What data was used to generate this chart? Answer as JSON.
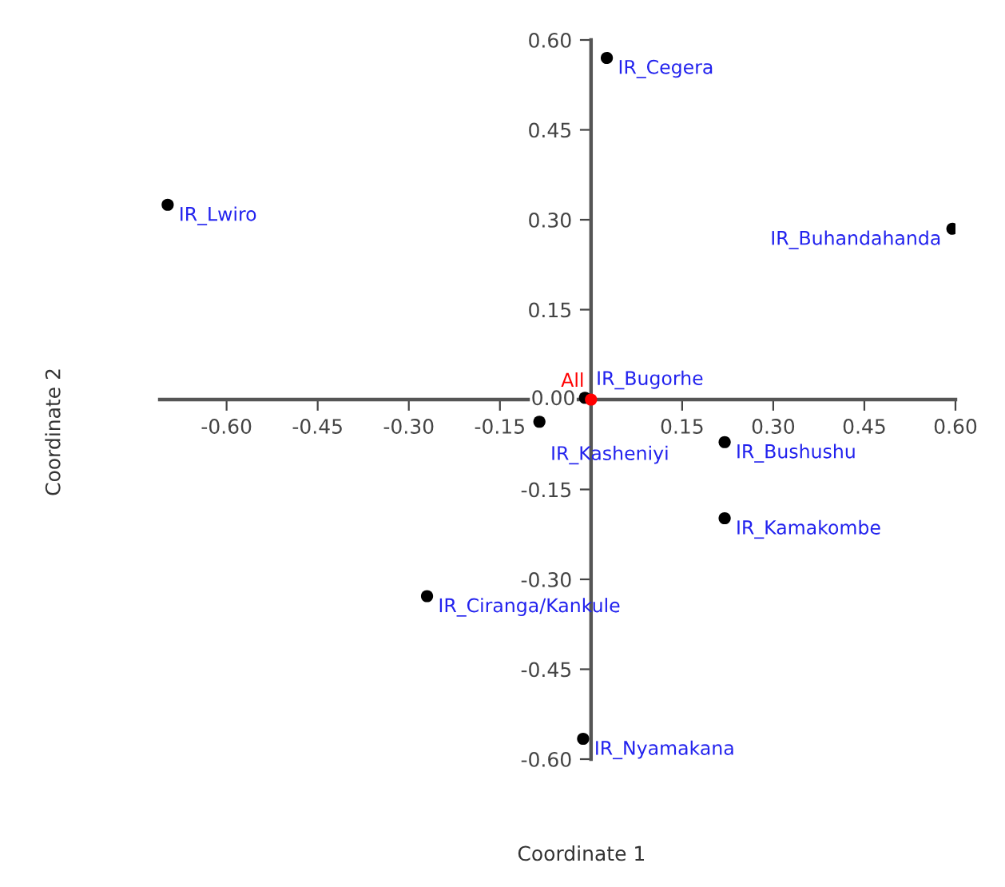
{
  "chart_data": {
    "type": "scatter",
    "xlabel": "Coordinate 1",
    "ylabel": "Coordinate 2",
    "series": [
      {
        "color": "#000000",
        "x": [
          -0.697,
          0.026,
          0.595,
          -0.085,
          -0.01,
          0.22,
          0.22,
          -0.27,
          -0.013
        ],
        "values": [
          0.325,
          0.57,
          0.285,
          -0.037,
          0.003,
          -0.071,
          -0.198,
          -0.328,
          -0.566
        ]
      },
      {
        "name": "All",
        "color": "#ff0000",
        "x": [
          0.0
        ],
        "values": [
          0.0
        ]
      }
    ],
    "annotations": [
      {
        "text": "IR_Lwiro",
        "x": -0.697,
        "y": 0.325
      },
      {
        "text": "IR_Cegera",
        "x": 0.026,
        "y": 0.57
      },
      {
        "text": "IR_Buhandahanda",
        "x": 0.595,
        "y": 0.285
      },
      {
        "text": "IR_Kasheniyi",
        "x": -0.085,
        "y": -0.037
      },
      {
        "text": "IR_Bugorhe",
        "x": -0.01,
        "y": 0.003
      },
      {
        "text": "IR_Bushushu",
        "x": 0.22,
        "y": -0.071
      },
      {
        "text": "IR_Kamakombe",
        "x": 0.22,
        "y": -0.198
      },
      {
        "text": "IR_Ciranga/Kankule",
        "x": -0.27,
        "y": -0.328
      },
      {
        "text": "IR_Nyamakana",
        "x": -0.013,
        "y": -0.566
      }
    ],
    "marker": "circle",
    "grid": false,
    "legend": false,
    "xlim": [
      -0.71,
      0.6
    ],
    "ylim": [
      -0.6,
      0.6
    ],
    "xticks": [
      {
        "value": -0.6,
        "label": "-0.60"
      },
      {
        "value": -0.45,
        "label": "-0.45"
      },
      {
        "value": -0.3,
        "label": "-0.30"
      },
      {
        "value": -0.15,
        "label": "-0.15"
      },
      {
        "value": 0.15,
        "label": "0.15"
      },
      {
        "value": 0.3,
        "label": "0.30"
      },
      {
        "value": 0.45,
        "label": "0.45"
      },
      {
        "value": 0.6,
        "label": "0.60"
      }
    ],
    "yticks": [
      {
        "value": -0.6,
        "label": "-0.60"
      },
      {
        "value": -0.45,
        "label": "-0.45"
      },
      {
        "value": -0.3,
        "label": "-0.30"
      },
      {
        "value": -0.15,
        "label": "-0.15"
      },
      {
        "value": 0,
        "label": "0.00"
      },
      {
        "value": 0.15,
        "label": "0.15"
      },
      {
        "value": 0.3,
        "label": "0.30"
      },
      {
        "value": 0.45,
        "label": "0.45"
      },
      {
        "value": 0.6,
        "label": "0.60"
      }
    ]
  }
}
